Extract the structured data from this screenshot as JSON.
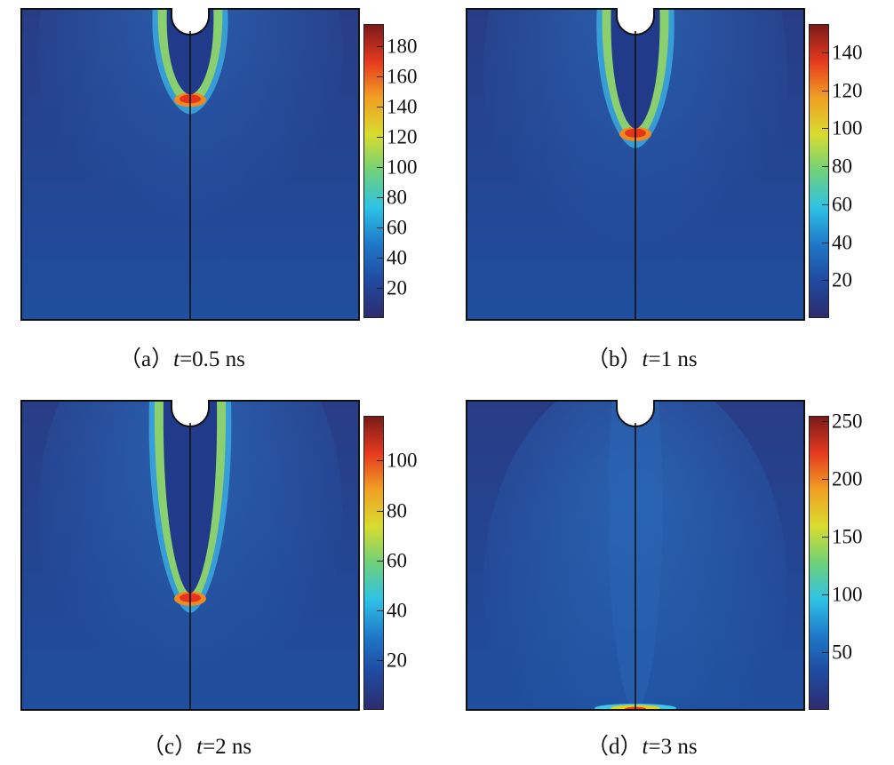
{
  "colormap": [
    "#2e2c6e",
    "#1f4aa0",
    "#1f78c8",
    "#2ec2e6",
    "#6fd17a",
    "#d8dc2e",
    "#f0a023",
    "#e63a1e",
    "#7a1a1a"
  ],
  "panels": [
    {
      "id": "a",
      "caption": {
        "prefix": "（a）",
        "var": "t",
        "eq": "=",
        "value": "0.5 ns"
      },
      "colorbar": {
        "min": 0,
        "max": 195,
        "ticks": [
          20,
          40,
          60,
          80,
          100,
          120,
          140,
          160,
          180
        ]
      },
      "front_depth": 0.22,
      "peak": 0.9
    },
    {
      "id": "b",
      "caption": {
        "prefix": "（b）",
        "var": "t",
        "eq": "=",
        "value": "1 ns"
      },
      "colorbar": {
        "min": 0,
        "max": 155,
        "ticks": [
          20,
          40,
          60,
          80,
          100,
          120,
          140
        ]
      },
      "front_depth": 0.34,
      "peak": 0.85
    },
    {
      "id": "c",
      "caption": {
        "prefix": "（c）",
        "var": "t",
        "eq": "=",
        "value": "2 ns"
      },
      "colorbar": {
        "min": 0,
        "max": 118,
        "ticks": [
          20,
          40,
          60,
          80,
          100
        ]
      },
      "front_depth": 0.6,
      "peak": 0.92
    },
    {
      "id": "d",
      "caption": {
        "prefix": "（d）",
        "var": "t",
        "eq": "=",
        "value": "3 ns"
      },
      "colorbar": {
        "min": 0,
        "max": 255,
        "ticks": [
          50,
          100,
          150,
          200,
          250
        ]
      },
      "front_depth": 1.0,
      "peak": 0.55
    }
  ]
}
